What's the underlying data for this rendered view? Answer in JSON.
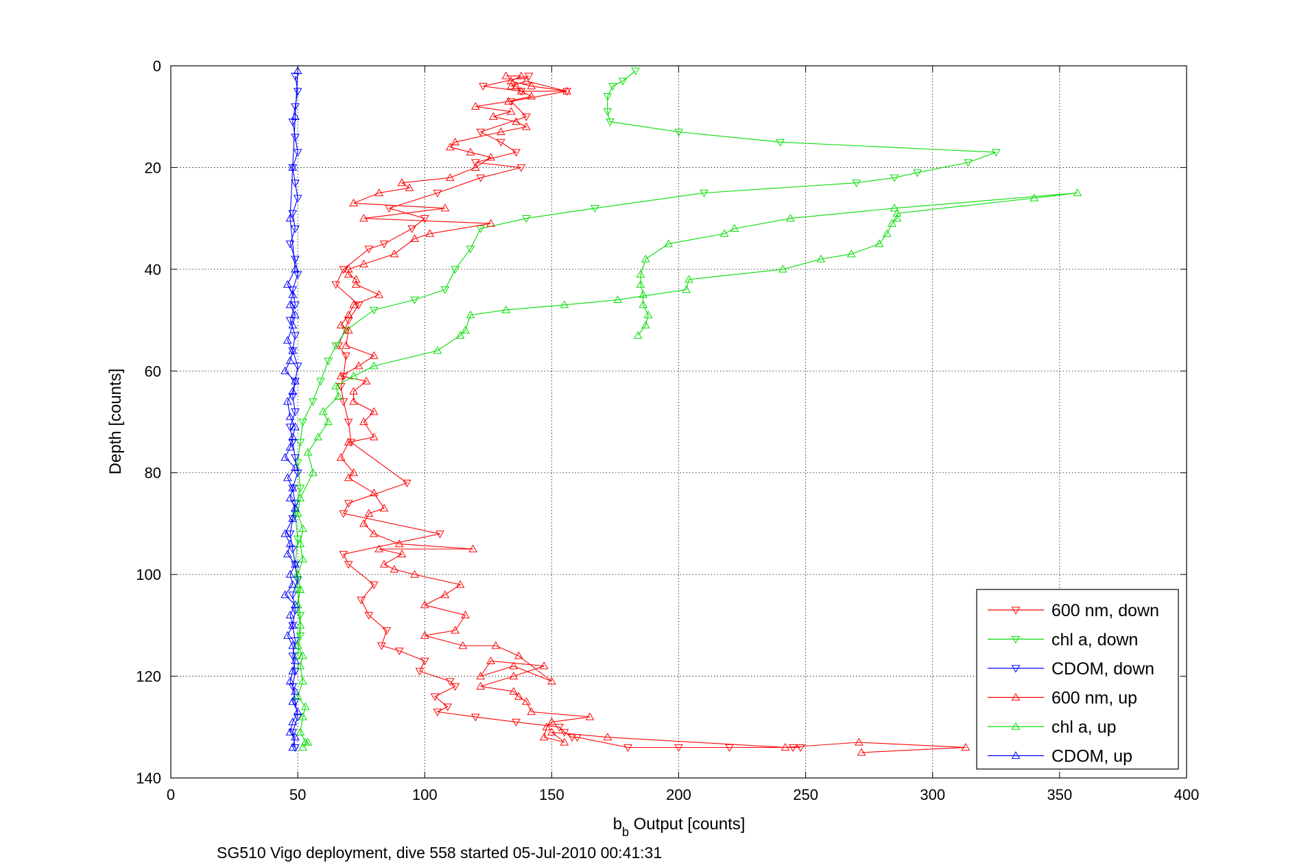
{
  "chart_data": {
    "type": "scatter",
    "xlabel_main": "b",
    "xlabel_sub": "b",
    "xlabel_rest": " Output [counts]",
    "ylabel": "Depth [counts]",
    "caption": "SG510 Vigo deployment, dive 558 started 05-Jul-2010 00:41:31",
    "xlim": [
      0,
      400
    ],
    "ylim": [
      0,
      140
    ],
    "y_reversed": true,
    "xticks": [
      0,
      50,
      100,
      150,
      200,
      250,
      300,
      350,
      400
    ],
    "yticks": [
      0,
      20,
      40,
      60,
      80,
      100,
      120,
      140
    ],
    "grid": true,
    "legend_position": "bottom-right",
    "series": [
      {
        "name": "600 nm, down",
        "color": "#ff0000",
        "marker": "triangle-down",
        "x": [
          141,
          123,
          138,
          156,
          134,
          140,
          122,
          130,
          136,
          120,
          138,
          122,
          105,
          86,
          100,
          95,
          84,
          78,
          68,
          65,
          74,
          70,
          66,
          69,
          68,
          67,
          68,
          70,
          71,
          93,
          70,
          68,
          106,
          68,
          70,
          80,
          75,
          78,
          85,
          83,
          90,
          100,
          98,
          110,
          112,
          104,
          109,
          105,
          120,
          136,
          153,
          155,
          158,
          160,
          180,
          200,
          220,
          245,
          248
        ],
        "y": [
          2,
          4,
          5,
          5,
          7,
          10,
          13,
          15,
          17,
          19,
          20,
          22,
          25,
          28,
          30,
          32,
          35,
          36,
          40,
          43,
          47,
          50,
          55,
          57,
          61,
          63,
          66,
          70,
          74,
          82,
          86,
          88,
          92,
          96,
          98,
          102,
          105,
          108,
          111,
          114,
          115,
          117,
          119,
          121,
          122,
          124,
          126,
          127,
          128,
          129,
          130,
          131,
          132,
          132,
          134,
          134,
          134,
          134,
          134
        ]
      },
      {
        "name": "chl a, down",
        "color": "#00dd00",
        "marker": "triangle-down",
        "x": [
          183,
          178,
          174,
          172,
          172,
          173,
          200,
          240,
          325,
          314,
          294,
          285,
          270,
          210,
          167,
          140,
          122,
          118,
          112,
          108,
          96,
          80,
          69,
          65,
          62,
          59,
          56,
          52,
          51,
          50,
          51,
          49,
          50,
          49,
          50,
          51,
          51,
          50
        ],
        "y": [
          1,
          3,
          4,
          6,
          9,
          11,
          13,
          15,
          17,
          19,
          21,
          22,
          23,
          25,
          28,
          30,
          32,
          36,
          40,
          44,
          46,
          48,
          52,
          55,
          58,
          62,
          66,
          70,
          74,
          78,
          83,
          88,
          93,
          98,
          103,
          108,
          112,
          116
        ]
      },
      {
        "name": "CDOM, down",
        "color": "#0000ff",
        "marker": "triangle-down",
        "x": [
          49,
          50,
          49,
          48,
          49,
          50,
          48,
          49,
          50,
          48,
          49,
          47,
          49,
          50,
          48,
          49,
          47,
          49,
          48,
          50,
          49,
          48,
          49,
          47,
          48,
          49,
          50,
          48,
          49,
          48,
          47,
          48,
          49,
          50,
          48,
          49,
          48,
          49,
          48,
          49,
          48,
          49,
          50,
          48,
          49
        ],
        "y": [
          2,
          5,
          8,
          11,
          14,
          17,
          20,
          23,
          26,
          29,
          32,
          35,
          38,
          41,
          44,
          47,
          50,
          53,
          56,
          59,
          62,
          65,
          68,
          71,
          74,
          77,
          80,
          83,
          86,
          89,
          92,
          95,
          98,
          101,
          104,
          107,
          110,
          113,
          116,
          119,
          122,
          125,
          128,
          131,
          134
        ]
      },
      {
        "name": "600 nm, up",
        "color": "#ff0000",
        "marker": "triangle-up",
        "x": [
          272,
          313,
          271,
          242,
          172,
          150,
          155,
          147,
          148,
          150,
          165,
          142,
          140,
          137,
          135,
          122,
          135,
          147,
          126,
          122,
          135,
          150,
          137,
          128,
          115,
          100,
          112,
          116,
          100,
          108,
          114,
          96,
          88,
          84,
          91,
          82,
          119,
          90,
          80,
          76,
          78,
          84,
          80,
          70,
          72,
          67,
          70,
          80,
          76,
          80,
          72,
          72,
          77,
          67,
          74,
          80,
          69,
          70,
          67,
          70,
          72,
          82,
          73,
          73,
          70,
          70,
          76,
          88,
          96,
          102,
          126,
          76,
          108,
          72,
          82,
          94,
          91,
          110,
          120,
          126,
          118,
          110,
          112,
          130,
          140,
          136,
          127,
          134,
          120,
          133,
          142,
          138,
          136,
          134,
          140,
          156,
          142,
          134,
          138,
          132
        ],
        "y": [
          135,
          134,
          133,
          134,
          132,
          131,
          133,
          132,
          130,
          129,
          128,
          127,
          125,
          124,
          123,
          122,
          120,
          118,
          117,
          120,
          118,
          121,
          116,
          114,
          114,
          112,
          111,
          108,
          106,
          104,
          102,
          100,
          99,
          98,
          96,
          95,
          95,
          94,
          92,
          90,
          88,
          87,
          84,
          81,
          80,
          77,
          74,
          73,
          70,
          68,
          66,
          64,
          62,
          61,
          59,
          57,
          55,
          52,
          51,
          49,
          47,
          45,
          43,
          42,
          41,
          40,
          39,
          37,
          34,
          33,
          31,
          30,
          28,
          27,
          25,
          24,
          23,
          22,
          20,
          18,
          17,
          16,
          15,
          13,
          12,
          11,
          10,
          9,
          8,
          7,
          6,
          5,
          4,
          4,
          3,
          5,
          4,
          3,
          2,
          2
        ]
      },
      {
        "name": "chl a, up",
        "color": "#00dd00",
        "marker": "triangle-up",
        "x": [
          52,
          54,
          53,
          51,
          52,
          53,
          50,
          52,
          51,
          52,
          50,
          51,
          50,
          51,
          50,
          52,
          51,
          52,
          50,
          51,
          56,
          54,
          58,
          62,
          60,
          66,
          65,
          72,
          80,
          105,
          114,
          116,
          118,
          132,
          155,
          176,
          203,
          204,
          241,
          256,
          268,
          279,
          282,
          284,
          286,
          286,
          340,
          357,
          285,
          244,
          222,
          218,
          196,
          187,
          185,
          185,
          186,
          186,
          188,
          187,
          184
        ],
        "y": [
          134,
          133,
          133,
          131,
          128,
          126,
          124,
          121,
          118,
          116,
          114,
          110,
          106,
          103,
          100,
          97,
          94,
          91,
          88,
          85,
          80,
          76,
          73,
          70,
          68,
          65,
          63,
          61,
          59,
          56,
          53,
          52,
          49,
          48,
          47,
          46,
          44,
          42,
          40,
          38,
          37,
          35,
          33,
          31,
          30,
          29,
          26,
          25,
          28,
          30,
          32,
          33,
          35,
          38,
          41,
          43,
          45,
          47,
          49,
          51,
          53
        ]
      },
      {
        "name": "CDOM, up",
        "color": "#0000ff",
        "marker": "triangle-up",
        "x": [
          48,
          49,
          47,
          48,
          50,
          48,
          49,
          47,
          48,
          49,
          48,
          46,
          48,
          47,
          49,
          45,
          48,
          47,
          49,
          46,
          47,
          45,
          48,
          49,
          47,
          48,
          46,
          49,
          45,
          47,
          48,
          49,
          47,
          46,
          48,
          49,
          45,
          47,
          48,
          46,
          48,
          49,
          47,
          48,
          46,
          49,
          47,
          48,
          49,
          50
        ],
        "y": [
          134,
          132,
          131,
          129,
          127,
          125,
          123,
          121,
          119,
          117,
          114,
          112,
          110,
          108,
          106,
          104,
          102,
          100,
          98,
          96,
          94,
          92,
          89,
          87,
          85,
          83,
          81,
          79,
          77,
          75,
          73,
          71,
          69,
          66,
          64,
          62,
          60,
          58,
          56,
          54,
          51,
          49,
          47,
          45,
          43,
          40,
          30,
          20,
          10,
          1
        ]
      }
    ]
  }
}
